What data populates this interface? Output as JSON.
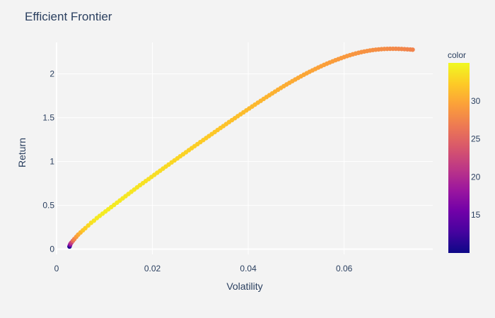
{
  "chart_data": {
    "type": "scatter",
    "title": "Efficient Frontier",
    "xlabel": "Volatility",
    "ylabel": "Return",
    "xlim": [
      0,
      0.0785
    ],
    "ylim": [
      -0.06,
      2.36
    ],
    "x_ticks": [
      0,
      0.02,
      0.04,
      0.06
    ],
    "x_tick_labels": [
      "0",
      "0.02",
      "0.04",
      "0.06"
    ],
    "y_ticks": [
      0,
      0.5,
      1,
      1.5,
      2
    ],
    "y_tick_labels": [
      "0",
      "0.5",
      "1",
      "1.5",
      "2"
    ],
    "grid": true,
    "colorbar": {
      "title": "color",
      "range": [
        10,
        35
      ],
      "ticks": [
        15,
        20,
        25,
        30
      ],
      "tick_labels": [
        "15",
        "20",
        "25",
        "30"
      ],
      "colorscale": [
        "#0d0887",
        "#46039f",
        "#7201a8",
        "#9c179e",
        "#bd3786",
        "#d8576b",
        "#ed7953",
        "#fb9f3a",
        "#fdca26",
        "#f0f921"
      ]
    },
    "series": [
      {
        "x": [
          0.0027,
          0.0028,
          0.0029,
          0.0031,
          0.0034,
          0.0037,
          0.0041,
          0.0045,
          0.005,
          0.0055,
          0.006,
          0.0066,
          0.0072,
          0.0078,
          0.0084,
          0.009,
          0.0096,
          0.0102,
          0.0108,
          0.0114,
          0.012,
          0.0126,
          0.0132,
          0.0138,
          0.0144,
          0.015,
          0.0156,
          0.0162,
          0.0168,
          0.0174,
          0.018,
          0.0186,
          0.0192,
          0.0198,
          0.0204,
          0.021,
          0.0216,
          0.0222,
          0.0228,
          0.0234,
          0.024,
          0.0246,
          0.0252,
          0.0258,
          0.0264,
          0.027,
          0.0276,
          0.0282,
          0.0288,
          0.0294,
          0.03,
          0.0306,
          0.0312,
          0.0318,
          0.0324,
          0.033,
          0.0336,
          0.0342,
          0.0348,
          0.0354,
          0.036,
          0.0366,
          0.0372,
          0.0378,
          0.0384,
          0.039,
          0.0396,
          0.0402,
          0.0408,
          0.0414,
          0.042,
          0.0426,
          0.0432,
          0.0438,
          0.0444,
          0.045,
          0.0456,
          0.0462,
          0.0468,
          0.0474,
          0.048,
          0.0486,
          0.0492,
          0.0498,
          0.0504,
          0.051,
          0.0516,
          0.0522,
          0.0528,
          0.0534,
          0.054,
          0.0546,
          0.0552,
          0.0558,
          0.0564,
          0.057,
          0.0576,
          0.0582,
          0.0588,
          0.0594,
          0.06,
          0.0606,
          0.0612,
          0.0618,
          0.0624,
          0.063,
          0.0636,
          0.0642,
          0.0648,
          0.0654,
          0.066,
          0.0666,
          0.0672,
          0.0678,
          0.0684,
          0.069,
          0.0696,
          0.0702,
          0.0708,
          0.0714,
          0.072,
          0.0726,
          0.0732,
          0.0738,
          0.0743
        ],
        "y": [
          0.03,
          0.045,
          0.06,
          0.075,
          0.095,
          0.115,
          0.14,
          0.165,
          0.19,
          0.215,
          0.24,
          0.27,
          0.3,
          0.325,
          0.355,
          0.38,
          0.405,
          0.43,
          0.455,
          0.48,
          0.505,
          0.53,
          0.555,
          0.58,
          0.605,
          0.63,
          0.655,
          0.68,
          0.705,
          0.73,
          0.753,
          0.777,
          0.8,
          0.824,
          0.848,
          0.872,
          0.895,
          0.919,
          0.943,
          0.966,
          0.99,
          1.013,
          1.036,
          1.06,
          1.083,
          1.106,
          1.13,
          1.153,
          1.176,
          1.199,
          1.222,
          1.245,
          1.268,
          1.291,
          1.314,
          1.337,
          1.36,
          1.383,
          1.405,
          1.428,
          1.451,
          1.473,
          1.495,
          1.518,
          1.54,
          1.562,
          1.584,
          1.606,
          1.628,
          1.65,
          1.672,
          1.693,
          1.715,
          1.736,
          1.757,
          1.778,
          1.799,
          1.82,
          1.84,
          1.86,
          1.88,
          1.899,
          1.918,
          1.937,
          1.955,
          1.973,
          1.991,
          2.008,
          2.025,
          2.041,
          2.057,
          2.073,
          2.088,
          2.103,
          2.117,
          2.131,
          2.144,
          2.157,
          2.169,
          2.181,
          2.193,
          2.204,
          2.214,
          2.224,
          2.233,
          2.241,
          2.249,
          2.256,
          2.262,
          2.268,
          2.273,
          2.277,
          2.28,
          2.283,
          2.285,
          2.286,
          2.287,
          2.287,
          2.287,
          2.286,
          2.285,
          2.283,
          2.281,
          2.279,
          2.277
        ],
        "color": [
          10.3,
          15,
          19,
          22,
          25.5,
          27.5,
          29,
          30,
          31,
          32,
          32.5,
          33,
          33.5,
          33.8,
          34,
          34.1,
          34.2,
          34.2,
          34.2,
          34.2,
          34.1,
          34.1,
          34,
          34,
          33.9,
          33.9,
          33.8,
          33.8,
          33.7,
          33.7,
          33.6,
          33.6,
          33.5,
          33.4,
          33.4,
          33.3,
          33.3,
          33.2,
          33.1,
          33.1,
          33,
          32.9,
          32.9,
          32.8,
          32.7,
          32.7,
          32.6,
          32.5,
          32.5,
          32.4,
          32.3,
          32.3,
          32.2,
          32.1,
          32.1,
          32,
          31.9,
          31.9,
          31.8,
          31.7,
          31.7,
          31.6,
          31.5,
          31.5,
          31.4,
          31.3,
          31.3,
          31.2,
          31.1,
          31.1,
          31,
          30.9,
          30.9,
          30.8,
          30.7,
          30.7,
          30.6,
          30.5,
          30.5,
          30.4,
          30.3,
          30.3,
          30.2,
          30.1,
          30.1,
          30,
          29.9,
          29.9,
          29.8,
          29.7,
          29.7,
          29.6,
          29.5,
          29.5,
          29.4,
          29.3,
          29.3,
          29.2,
          29.1,
          29.1,
          29,
          28.9,
          28.9,
          28.8,
          28.7,
          28.7,
          28.6,
          28.5,
          28.5,
          28.4,
          28.3,
          28.3,
          28.2,
          28.1,
          28.1,
          28,
          27.9,
          27.9,
          27.8,
          27.7,
          27.7,
          27.6,
          27.5,
          27.5,
          27.4
        ]
      }
    ]
  }
}
